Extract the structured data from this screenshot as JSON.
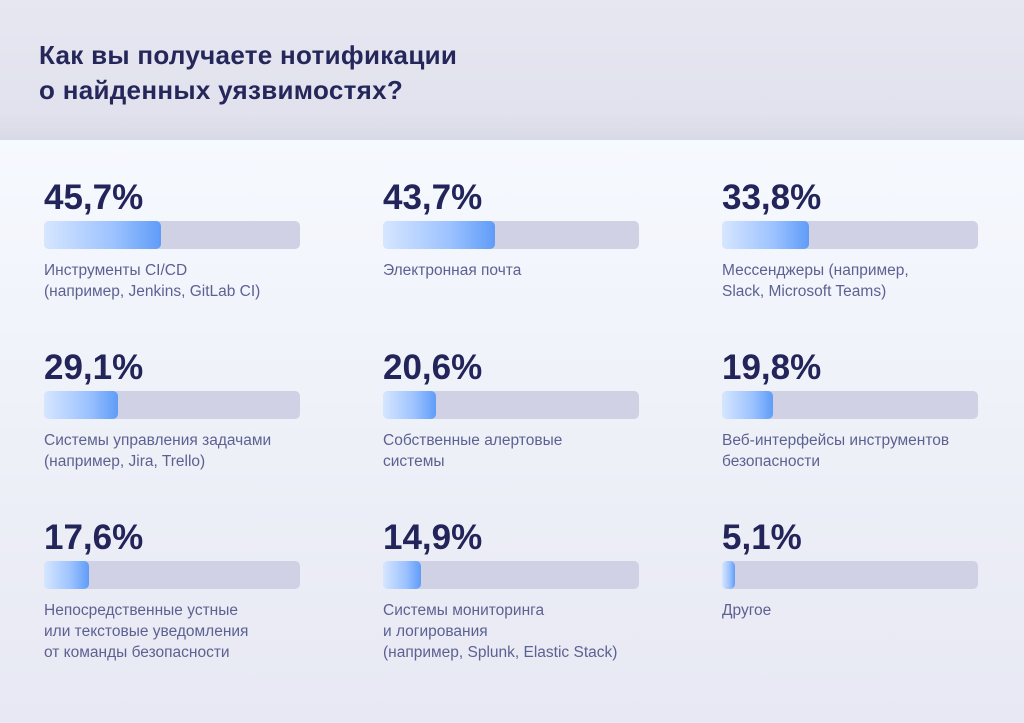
{
  "chart_data": {
    "type": "bar",
    "title": "Как вы получаете нотификации\nо найденных уязвимостях?",
    "ylim": [
      0,
      100
    ],
    "categories": [
      "Инструменты CI/CD\n(например, Jenkins, GitLab CI)",
      "Электронная почта",
      "Мессенджеры (например,\nSlack, Microsoft Teams)",
      "Системы управления задачами\n(например, Jira, Trello)",
      "Собственные алертовые\nсистемы",
      "Веб-интерфейсы инструментов\nбезопасности",
      "Непосредственные устные\nили текстовые уведомления\nот команды безопасности",
      "Системы мониторинга\nи логирования\n(например, Splunk, Elastic Stack)",
      "Другое"
    ],
    "values": [
      45.7,
      43.7,
      33.8,
      29.1,
      20.6,
      19.8,
      17.6,
      14.9,
      5.1
    ],
    "value_labels": [
      "45,7%",
      "43,7%",
      "33,8%",
      "29,1%",
      "20,6%",
      "19,8%",
      "17,6%",
      "14,9%",
      "5,1%"
    ]
  },
  "colors": {
    "fill": "#5f9cf8",
    "track": "#d0d1e4",
    "text": "#22245a"
  }
}
